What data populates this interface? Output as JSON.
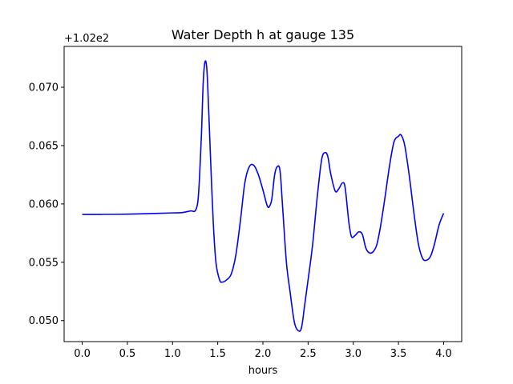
{
  "chart_data": {
    "type": "line",
    "title": "Water Depth h at gauge 135",
    "xlabel": "hours",
    "ylabel": "",
    "offset_label": "+1.02e2",
    "xlim": [
      -0.2,
      4.2
    ],
    "ylim": [
      0.0482,
      0.0735
    ],
    "x_ticks": [
      0.0,
      0.5,
      1.0,
      1.5,
      2.0,
      2.5,
      3.0,
      3.5,
      4.0
    ],
    "x_tick_labels": [
      "0.0",
      "0.5",
      "1.0",
      "1.5",
      "2.0",
      "2.5",
      "3.0",
      "3.5",
      "4.0"
    ],
    "y_ticks": [
      0.05,
      0.055,
      0.06,
      0.065,
      0.07
    ],
    "y_tick_labels": [
      "0.050",
      "0.055",
      "0.060",
      "0.065",
      "0.070"
    ],
    "grid": false,
    "series": [
      {
        "color": "#0000ff",
        "x": [
          0.0,
          0.2,
          0.5,
          0.8,
          1.0,
          1.1,
          1.2,
          1.25,
          1.28,
          1.3,
          1.32,
          1.34,
          1.36,
          1.38,
          1.4,
          1.42,
          1.45,
          1.48,
          1.52,
          1.55,
          1.6,
          1.65,
          1.7,
          1.75,
          1.8,
          1.85,
          1.9,
          1.95,
          2.0,
          2.05,
          2.08,
          2.1,
          2.13,
          2.16,
          2.19,
          2.22,
          2.26,
          2.3,
          2.35,
          2.4,
          2.43,
          2.46,
          2.5,
          2.55,
          2.6,
          2.65,
          2.69,
          2.72,
          2.75,
          2.8,
          2.84,
          2.88,
          2.91,
          2.95,
          2.98,
          3.02,
          3.06,
          3.1,
          3.14,
          3.18,
          3.22,
          3.26,
          3.3,
          3.35,
          3.4,
          3.45,
          3.5,
          3.53,
          3.57,
          3.62,
          3.67,
          3.72,
          3.77,
          3.82,
          3.86,
          3.9,
          3.95,
          4.0
        ],
        "y": [
          0.0591,
          0.0591,
          0.05912,
          0.05918,
          0.05923,
          0.05925,
          0.0594,
          0.0594,
          0.0602,
          0.0625,
          0.066,
          0.0705,
          0.0722,
          0.0715,
          0.068,
          0.064,
          0.0585,
          0.055,
          0.0535,
          0.0533,
          0.0535,
          0.054,
          0.0556,
          0.0585,
          0.0618,
          0.0632,
          0.0633,
          0.0625,
          0.0612,
          0.0598,
          0.0599,
          0.0605,
          0.0625,
          0.0632,
          0.0628,
          0.0595,
          0.055,
          0.0525,
          0.0498,
          0.0491,
          0.0495,
          0.0512,
          0.0535,
          0.0565,
          0.0605,
          0.0638,
          0.0644,
          0.064,
          0.0626,
          0.0611,
          0.0613,
          0.0618,
          0.0614,
          0.0585,
          0.0572,
          0.0573,
          0.0576,
          0.0574,
          0.0562,
          0.0558,
          0.0559,
          0.0565,
          0.058,
          0.0605,
          0.0632,
          0.0653,
          0.0658,
          0.0659,
          0.065,
          0.0624,
          0.0593,
          0.0566,
          0.0553,
          0.0552,
          0.0556,
          0.0566,
          0.0582,
          0.0592
        ]
      }
    ]
  }
}
